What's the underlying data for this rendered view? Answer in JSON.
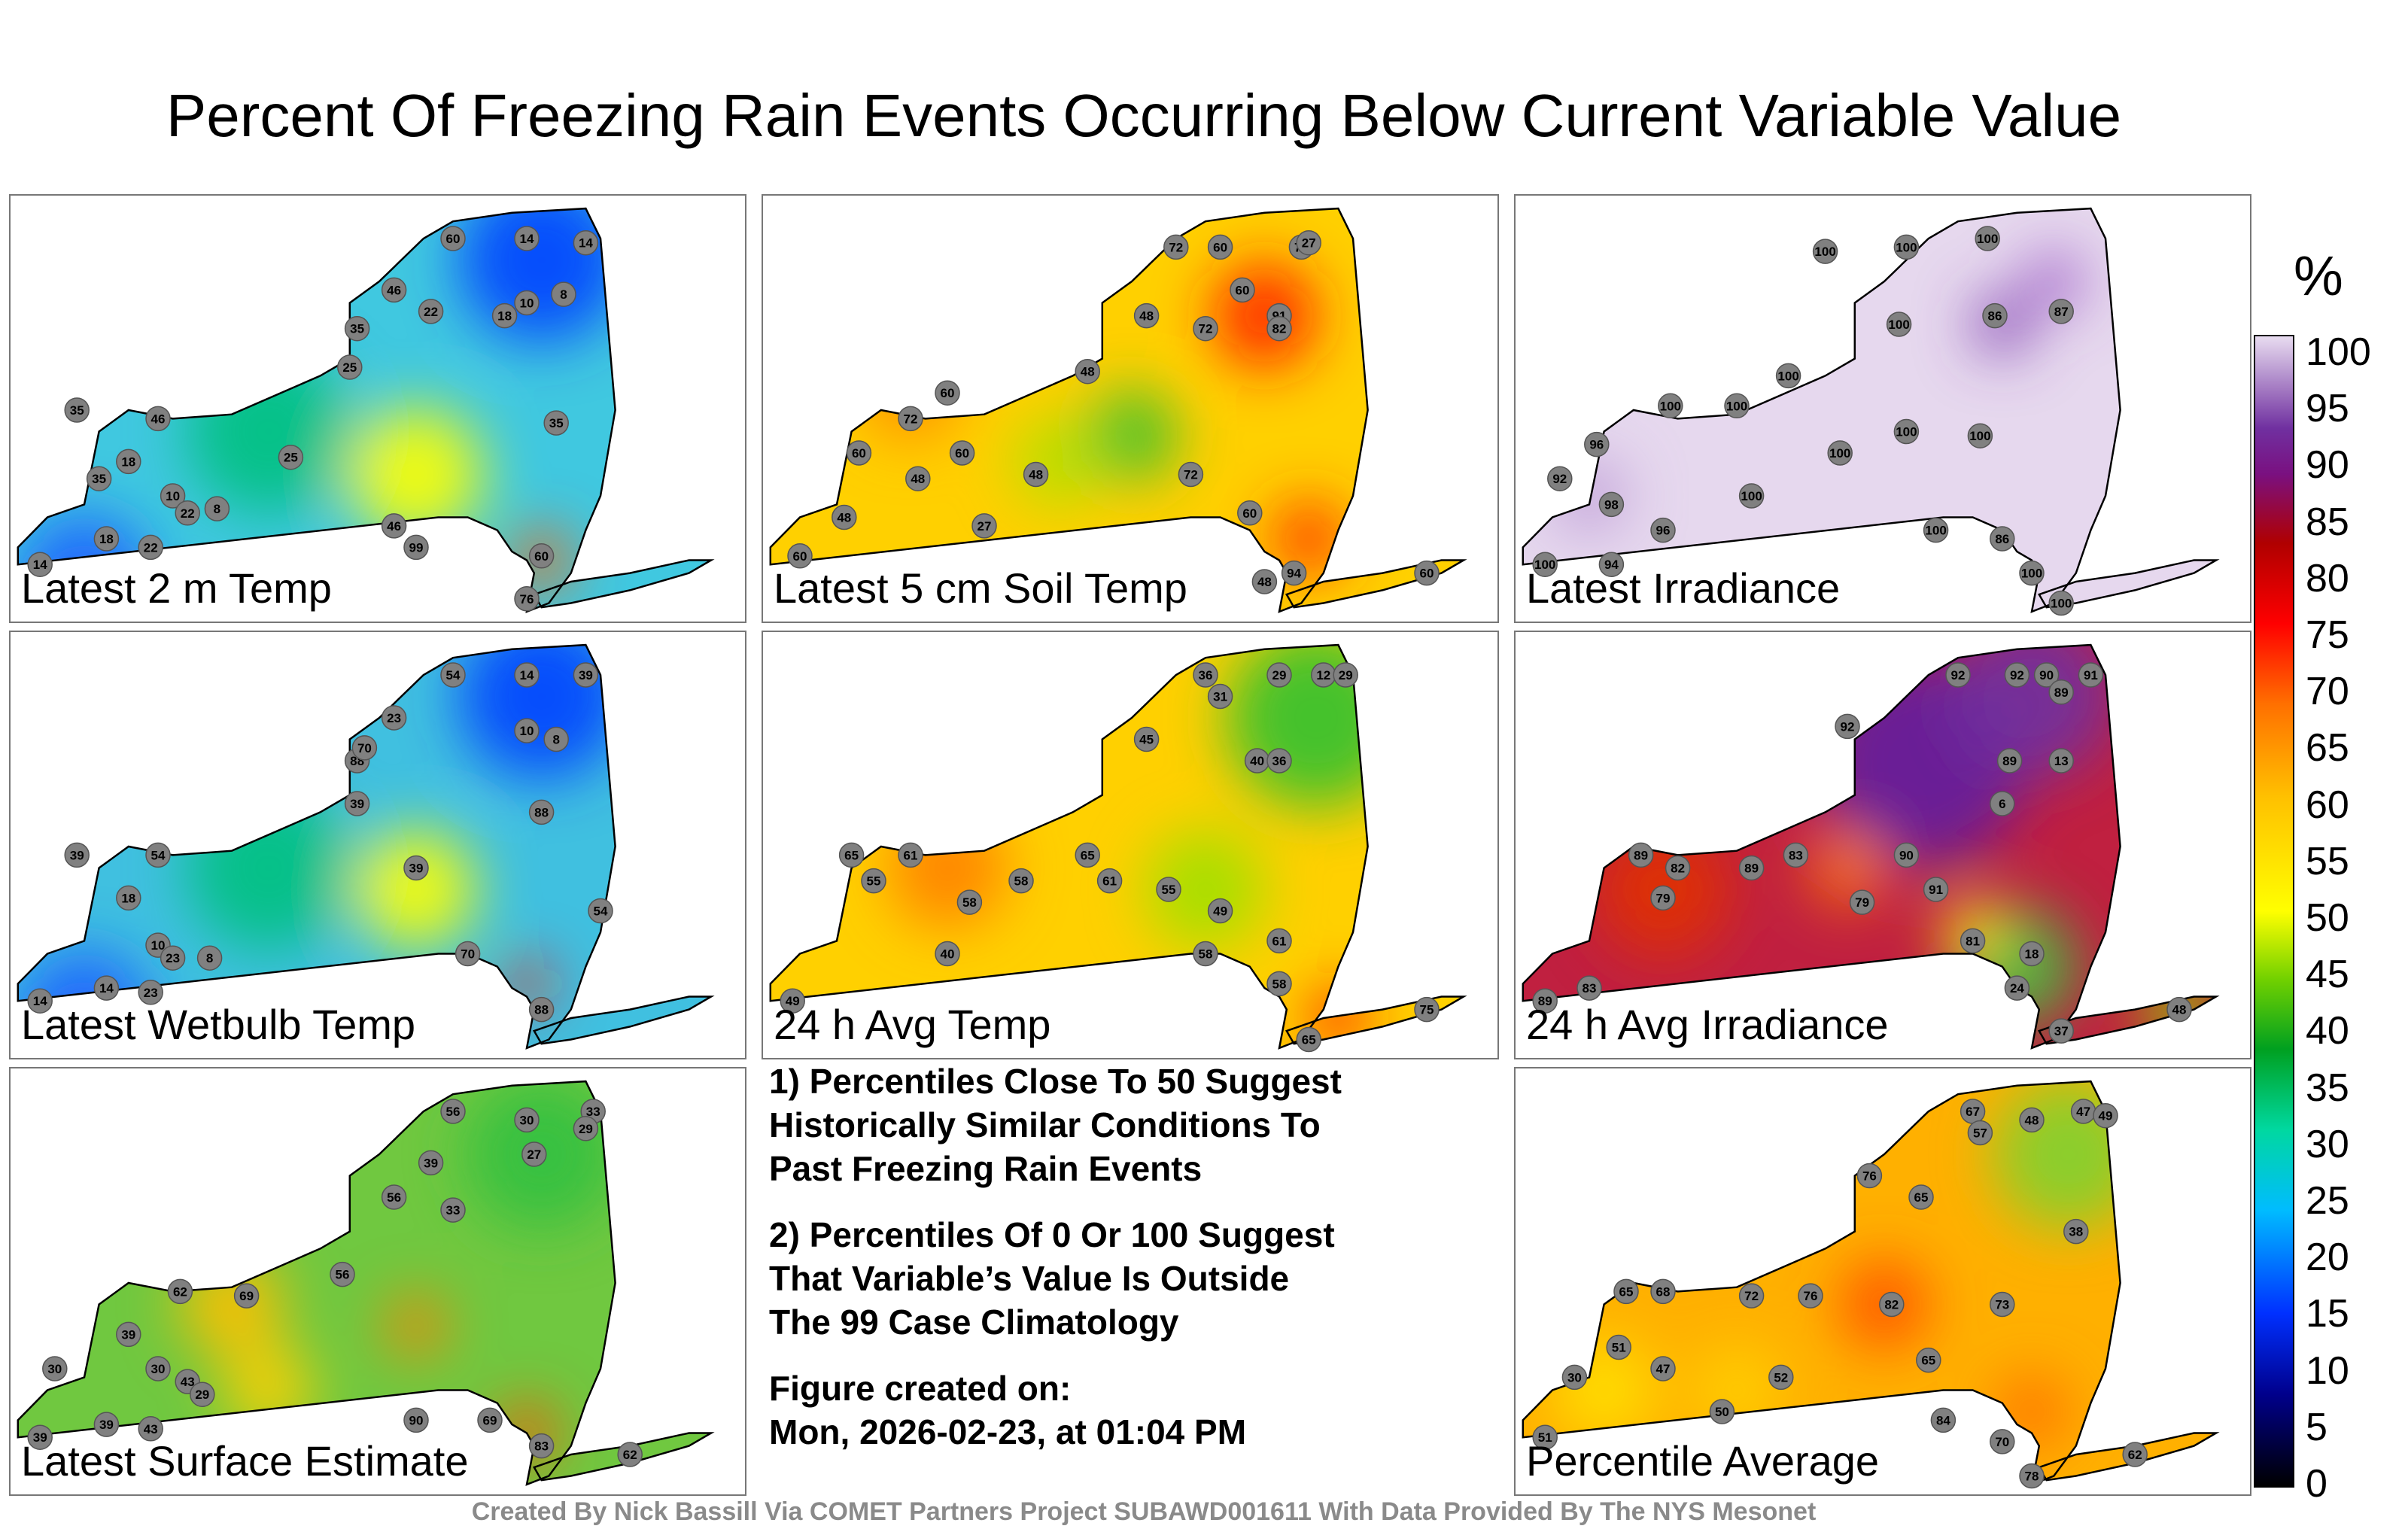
{
  "title": "Percent Of Freezing Rain Events Occurring Below Current Variable Value",
  "panels": [
    {
      "label": "Latest 2 m Temp",
      "base": "#40c8e0",
      "blobs": [
        [
          "#0040ff",
          0.72,
          0.15,
          110
        ],
        [
          "#ffff00",
          0.55,
          0.65,
          90
        ],
        [
          "#ff6000",
          0.72,
          0.85,
          40
        ],
        [
          "#00c080",
          0.35,
          0.55,
          110
        ],
        [
          "#2060ff",
          0.1,
          0.9,
          90
        ]
      ],
      "stations": [
        [
          60,
          0.6,
          0.1
        ],
        [
          14,
          0.7,
          0.1
        ],
        [
          14,
          0.78,
          0.11
        ],
        [
          46,
          0.52,
          0.22
        ],
        [
          22,
          0.57,
          0.27
        ],
        [
          18,
          0.67,
          0.28
        ],
        [
          8,
          0.75,
          0.23
        ],
        [
          10,
          0.7,
          0.25
        ],
        [
          35,
          0.47,
          0.31
        ],
        [
          25,
          0.46,
          0.4
        ],
        [
          35,
          0.09,
          0.5
        ],
        [
          46,
          0.2,
          0.52
        ],
        [
          18,
          0.16,
          0.62
        ],
        [
          10,
          0.22,
          0.7
        ],
        [
          22,
          0.24,
          0.74
        ],
        [
          8,
          0.28,
          0.73
        ],
        [
          35,
          0.12,
          0.66
        ],
        [
          18,
          0.13,
          0.8
        ],
        [
          22,
          0.19,
          0.82
        ],
        [
          25,
          0.38,
          0.61
        ],
        [
          46,
          0.52,
          0.77
        ],
        [
          60,
          0.72,
          0.84
        ],
        [
          76,
          0.7,
          0.94
        ],
        [
          35,
          0.74,
          0.53
        ],
        [
          99,
          0.55,
          0.82
        ],
        [
          14,
          0.04,
          0.86
        ]
      ]
    },
    {
      "label": "Latest 5 cm Soil Temp",
      "base": "#ffd000",
      "blobs": [
        [
          "#ff2000",
          0.68,
          0.28,
          70
        ],
        [
          "#ff3000",
          0.74,
          0.8,
          50
        ],
        [
          "#30c030",
          0.5,
          0.56,
          60
        ],
        [
          "#ff9000",
          0.2,
          0.45,
          70
        ],
        [
          "#b0e000",
          0.4,
          0.62,
          60
        ]
      ],
      "stations": [
        [
          72,
          0.56,
          0.12
        ],
        [
          60,
          0.62,
          0.12
        ],
        [
          72,
          0.73,
          0.12
        ],
        [
          27,
          0.74,
          0.11
        ],
        [
          91,
          0.7,
          0.28
        ],
        [
          82,
          0.7,
          0.31
        ],
        [
          60,
          0.65,
          0.22
        ],
        [
          48,
          0.52,
          0.28
        ],
        [
          72,
          0.6,
          0.31
        ],
        [
          48,
          0.44,
          0.41
        ],
        [
          60,
          0.25,
          0.46
        ],
        [
          72,
          0.2,
          0.52
        ],
        [
          60,
          0.13,
          0.6
        ],
        [
          48,
          0.21,
          0.66
        ],
        [
          27,
          0.3,
          0.77
        ],
        [
          60,
          0.27,
          0.6
        ],
        [
          48,
          0.37,
          0.65
        ],
        [
          72,
          0.58,
          0.65
        ],
        [
          60,
          0.66,
          0.74
        ],
        [
          94,
          0.72,
          0.88
        ],
        [
          48,
          0.68,
          0.9
        ],
        [
          60,
          0.05,
          0.84
        ],
        [
          48,
          0.11,
          0.75
        ],
        [
          60,
          0.9,
          0.88
        ]
      ]
    },
    {
      "label": "Latest Irradiance",
      "base": "#e6d8ee",
      "blobs": [
        [
          "#8040b0",
          0.66,
          0.3,
          40
        ],
        [
          "#a060c8",
          0.73,
          0.2,
          40
        ],
        [
          "#c0a0d8",
          0.1,
          0.7,
          50
        ]
      ],
      "stations": [
        [
          100,
          0.42,
          0.13
        ],
        [
          100,
          0.53,
          0.12
        ],
        [
          100,
          0.64,
          0.1
        ],
        [
          86,
          0.65,
          0.28
        ],
        [
          87,
          0.74,
          0.27
        ],
        [
          100,
          0.52,
          0.3
        ],
        [
          100,
          0.37,
          0.42
        ],
        [
          100,
          0.3,
          0.49
        ],
        [
          100,
          0.21,
          0.49
        ],
        [
          96,
          0.11,
          0.58
        ],
        [
          92,
          0.06,
          0.66
        ],
        [
          98,
          0.13,
          0.72
        ],
        [
          96,
          0.2,
          0.78
        ],
        [
          94,
          0.13,
          0.86
        ],
        [
          100,
          0.04,
          0.86
        ],
        [
          100,
          0.44,
          0.6
        ],
        [
          100,
          0.53,
          0.55
        ],
        [
          100,
          0.63,
          0.56
        ],
        [
          100,
          0.57,
          0.78
        ],
        [
          86,
          0.66,
          0.8
        ],
        [
          100,
          0.7,
          0.88
        ],
        [
          100,
          0.74,
          0.95
        ],
        [
          100,
          0.32,
          0.7
        ]
      ]
    },
    {
      "label": "Latest Wetbulb Temp",
      "base": "#40c0e0",
      "blobs": [
        [
          "#0040ff",
          0.72,
          0.15,
          110
        ],
        [
          "#ffff00",
          0.55,
          0.6,
          80
        ],
        [
          "#ff2000",
          0.7,
          0.82,
          30
        ],
        [
          "#00c080",
          0.35,
          0.55,
          110
        ],
        [
          "#2060ff",
          0.1,
          0.9,
          90
        ]
      ],
      "stations": [
        [
          54,
          0.6,
          0.1
        ],
        [
          14,
          0.7,
          0.1
        ],
        [
          39,
          0.78,
          0.1
        ],
        [
          23,
          0.52,
          0.2
        ],
        [
          10,
          0.7,
          0.23
        ],
        [
          8,
          0.74,
          0.25
        ],
        [
          88,
          0.47,
          0.3
        ],
        [
          70,
          0.48,
          0.27
        ],
        [
          39,
          0.47,
          0.4
        ],
        [
          54,
          0.2,
          0.52
        ],
        [
          39,
          0.09,
          0.52
        ],
        [
          18,
          0.16,
          0.62
        ],
        [
          10,
          0.2,
          0.73
        ],
        [
          23,
          0.22,
          0.76
        ],
        [
          8,
          0.27,
          0.76
        ],
        [
          14,
          0.13,
          0.83
        ],
        [
          23,
          0.19,
          0.84
        ],
        [
          88,
          0.72,
          0.42
        ],
        [
          70,
          0.62,
          0.75
        ],
        [
          88,
          0.72,
          0.88
        ],
        [
          54,
          0.8,
          0.65
        ],
        [
          14,
          0.04,
          0.86
        ],
        [
          39,
          0.55,
          0.55
        ]
      ]
    },
    {
      "label": "24 h Avg Temp",
      "base": "#ffd000",
      "blobs": [
        [
          "#30c030",
          0.75,
          0.2,
          120
        ],
        [
          "#ff8000",
          0.25,
          0.55,
          80
        ],
        [
          "#ff2000",
          0.78,
          0.9,
          40
        ],
        [
          "#a0e000",
          0.6,
          0.6,
          80
        ]
      ],
      "stations": [
        [
          36,
          0.6,
          0.1
        ],
        [
          29,
          0.7,
          0.1
        ],
        [
          12,
          0.76,
          0.1
        ],
        [
          29,
          0.79,
          0.1
        ],
        [
          31,
          0.62,
          0.15
        ],
        [
          45,
          0.52,
          0.25
        ],
        [
          40,
          0.67,
          0.3
        ],
        [
          36,
          0.7,
          0.3
        ],
        [
          65,
          0.12,
          0.52
        ],
        [
          61,
          0.2,
          0.52
        ],
        [
          55,
          0.15,
          0.58
        ],
        [
          58,
          0.28,
          0.63
        ],
        [
          58,
          0.35,
          0.58
        ],
        [
          65,
          0.44,
          0.52
        ],
        [
          61,
          0.47,
          0.58
        ],
        [
          55,
          0.55,
          0.6
        ],
        [
          49,
          0.62,
          0.65
        ],
        [
          58,
          0.6,
          0.75
        ],
        [
          61,
          0.7,
          0.72
        ],
        [
          58,
          0.7,
          0.82
        ],
        [
          65,
          0.74,
          0.95
        ],
        [
          49,
          0.04,
          0.86
        ],
        [
          40,
          0.25,
          0.75
        ],
        [
          75,
          0.9,
          0.88
        ]
      ]
    },
    {
      "label": "24 h Avg Irradiance",
      "base": "#c02040",
      "blobs": [
        [
          "#6020a0",
          0.55,
          0.3,
          140
        ],
        [
          "#7030a0",
          0.7,
          0.15,
          110
        ],
        [
          "#40c040",
          0.68,
          0.78,
          80
        ],
        [
          "#ffff00",
          0.62,
          0.7,
          40
        ],
        [
          "#e03000",
          0.2,
          0.6,
          90
        ],
        [
          "#ff8000",
          0.45,
          0.55,
          50
        ],
        [
          "#90d000",
          0.9,
          0.88,
          50
        ]
      ],
      "stations": [
        [
          92,
          0.6,
          0.1
        ],
        [
          92,
          0.68,
          0.1
        ],
        [
          90,
          0.72,
          0.1
        ],
        [
          91,
          0.78,
          0.1
        ],
        [
          89,
          0.74,
          0.14
        ],
        [
          92,
          0.45,
          0.22
        ],
        [
          89,
          0.67,
          0.3
        ],
        [
          13,
          0.74,
          0.3
        ],
        [
          6,
          0.66,
          0.4
        ],
        [
          89,
          0.17,
          0.52
        ],
        [
          82,
          0.22,
          0.55
        ],
        [
          79,
          0.2,
          0.62
        ],
        [
          89,
          0.32,
          0.55
        ],
        [
          83,
          0.38,
          0.52
        ],
        [
          79,
          0.47,
          0.63
        ],
        [
          90,
          0.53,
          0.52
        ],
        [
          91,
          0.57,
          0.6
        ],
        [
          81,
          0.62,
          0.72
        ],
        [
          24,
          0.68,
          0.83
        ],
        [
          18,
          0.7,
          0.75
        ],
        [
          37,
          0.74,
          0.93
        ],
        [
          89,
          0.04,
          0.86
        ],
        [
          83,
          0.1,
          0.83
        ],
        [
          48,
          0.9,
          0.88
        ]
      ]
    },
    {
      "label": "Latest Surface Estimate",
      "base": "#70c840",
      "blobs": [
        [
          "#30c040",
          0.72,
          0.2,
          100
        ],
        [
          "#ffc000",
          0.3,
          0.55,
          70
        ],
        [
          "#ff5000",
          0.7,
          0.85,
          40
        ],
        [
          "#ff8000",
          0.55,
          0.6,
          40
        ],
        [
          "#ffd000",
          0.35,
          0.75,
          60
        ]
      ],
      "stations": [
        [
          56,
          0.6,
          0.1
        ],
        [
          30,
          0.7,
          0.12
        ],
        [
          33,
          0.79,
          0.1
        ],
        [
          29,
          0.78,
          0.14
        ],
        [
          27,
          0.71,
          0.2
        ],
        [
          39,
          0.57,
          0.22
        ],
        [
          56,
          0.52,
          0.3
        ],
        [
          33,
          0.6,
          0.33
        ],
        [
          56,
          0.45,
          0.48
        ],
        [
          62,
          0.23,
          0.52
        ],
        [
          69,
          0.32,
          0.53
        ],
        [
          39,
          0.16,
          0.62
        ],
        [
          30,
          0.2,
          0.7
        ],
        [
          43,
          0.24,
          0.73
        ],
        [
          29,
          0.26,
          0.76
        ],
        [
          39,
          0.13,
          0.83
        ],
        [
          43,
          0.19,
          0.84
        ],
        [
          90,
          0.55,
          0.82
        ],
        [
          69,
          0.65,
          0.82
        ],
        [
          83,
          0.72,
          0.88
        ],
        [
          62,
          0.84,
          0.9
        ],
        [
          39,
          0.04,
          0.86
        ],
        [
          30,
          0.06,
          0.7
        ]
      ]
    },
    {
      "label": "Percentile Average",
      "base": "#ffb000",
      "blobs": [
        [
          "#80d030",
          0.75,
          0.2,
          100
        ],
        [
          "#ff5000",
          0.5,
          0.55,
          60
        ],
        [
          "#ffe000",
          0.12,
          0.75,
          70
        ],
        [
          "#ff7000",
          0.7,
          0.8,
          50
        ],
        [
          "#ffd000",
          0.3,
          0.75,
          60
        ]
      ],
      "stations": [
        [
          67,
          0.62,
          0.1
        ],
        [
          48,
          0.7,
          0.12
        ],
        [
          47,
          0.77,
          0.1
        ],
        [
          49,
          0.8,
          0.11
        ],
        [
          57,
          0.63,
          0.15
        ],
        [
          76,
          0.48,
          0.25
        ],
        [
          65,
          0.55,
          0.3
        ],
        [
          38,
          0.76,
          0.38
        ],
        [
          65,
          0.15,
          0.52
        ],
        [
          68,
          0.2,
          0.52
        ],
        [
          72,
          0.32,
          0.53
        ],
        [
          76,
          0.4,
          0.53
        ],
        [
          82,
          0.51,
          0.55
        ],
        [
          73,
          0.66,
          0.55
        ],
        [
          51,
          0.14,
          0.65
        ],
        [
          47,
          0.2,
          0.7
        ],
        [
          50,
          0.28,
          0.8
        ],
        [
          52,
          0.36,
          0.72
        ],
        [
          65,
          0.56,
          0.68
        ],
        [
          84,
          0.58,
          0.82
        ],
        [
          70,
          0.66,
          0.87
        ],
        [
          78,
          0.7,
          0.95
        ],
        [
          62,
          0.84,
          0.9
        ],
        [
          51,
          0.04,
          0.86
        ],
        [
          30,
          0.08,
          0.72
        ]
      ]
    }
  ],
  "notes": {
    "note1": [
      "1) Percentiles Close To 50 Suggest",
      "Historically Similar Conditions To",
      "Past Freezing Rain Events"
    ],
    "note2": [
      "2) Percentiles Of 0 Or 100 Suggest",
      "That Variable’s Value Is Outside",
      "The 99 Case Climatology"
    ],
    "created": [
      "Figure created on:",
      "Mon, 2026-02-23, at 01:04 PM"
    ]
  },
  "credit": "Created By Nick Bassill Via COMET Partners Project SUBAWD001611 With Data Provided By The NYS Mesonet",
  "colorbar": {
    "unit": "%",
    "ticks": [
      "100",
      "95",
      "90",
      "85",
      "80",
      "75",
      "70",
      "65",
      "60",
      "55",
      "50",
      "45",
      "40",
      "35",
      "30",
      "25",
      "20",
      "15",
      "10",
      "5",
      "0"
    ]
  }
}
